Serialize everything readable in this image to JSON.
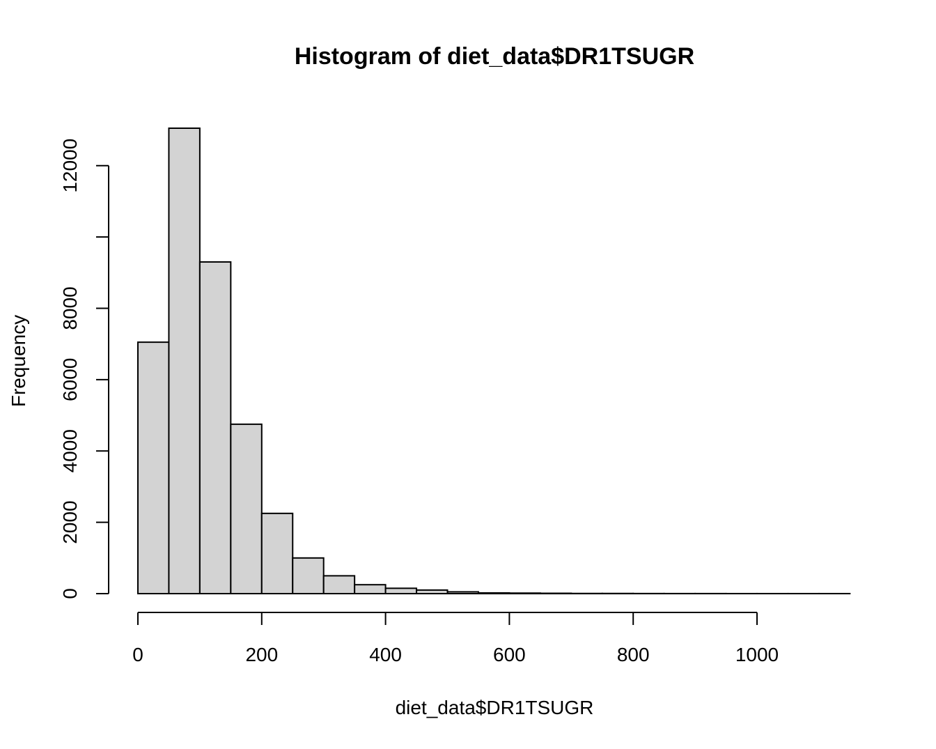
{
  "chart_data": {
    "type": "bar",
    "title": "Histogram of diet_data$DR1TSUGR",
    "xlabel": "diet_data$DR1TSUGR",
    "ylabel": "Frequency",
    "bin_edges": [
      0,
      50,
      100,
      150,
      200,
      250,
      300,
      350,
      400,
      450,
      500,
      550,
      600,
      650,
      700,
      750,
      800,
      850,
      900,
      950,
      1000,
      1050,
      1100,
      1150
    ],
    "values": [
      7050,
      13050,
      9300,
      4750,
      2250,
      1000,
      500,
      250,
      150,
      100,
      50,
      20,
      15,
      10,
      5,
      5,
      3,
      2,
      2,
      1,
      1,
      1,
      1
    ],
    "x_ticks": [
      0,
      200,
      400,
      600,
      800,
      1000
    ],
    "x_tick_labels": [
      "0",
      "200",
      "400",
      "600",
      "800",
      "1000"
    ],
    "y_ticks": [
      0,
      2000,
      4000,
      6000,
      8000,
      10000,
      12000
    ],
    "y_tick_labels": [
      "0",
      "2000",
      "4000",
      "6000",
      "8000",
      "",
      "12000"
    ],
    "xlim": [
      0,
      1150
    ],
    "ylim": [
      0,
      13050
    ],
    "bar_fill": "#d3d3d3",
    "grid": false
  }
}
